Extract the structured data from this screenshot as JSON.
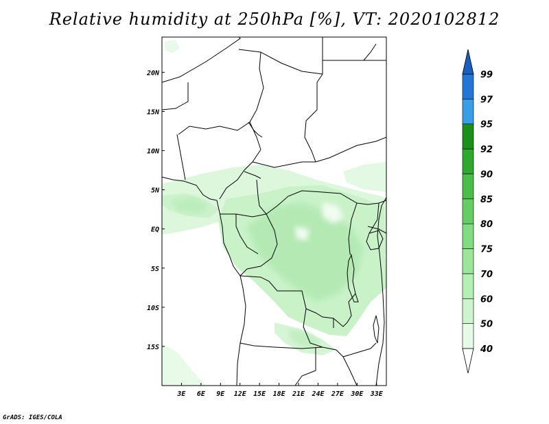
{
  "title": "Relative humidity at 250hPa [%], VT: 2020102812",
  "credit": "GrADS: IGES/COLA",
  "map": {
    "lon_range": [
      0,
      34.5
    ],
    "lat_range": [
      -20,
      24.5
    ],
    "x_ticks": [
      {
        "value": 3,
        "label": "3E"
      },
      {
        "value": 6,
        "label": "6E"
      },
      {
        "value": 9,
        "label": "9E"
      },
      {
        "value": 12,
        "label": "12E"
      },
      {
        "value": 15,
        "label": "15E"
      },
      {
        "value": 18,
        "label": "18E"
      },
      {
        "value": 21,
        "label": "21E"
      },
      {
        "value": 24,
        "label": "24E"
      },
      {
        "value": 27,
        "label": "27E"
      },
      {
        "value": 30,
        "label": "30E"
      },
      {
        "value": 33,
        "label": "33E"
      }
    ],
    "y_ticks": [
      {
        "value": 20,
        "label": "20N"
      },
      {
        "value": 15,
        "label": "15N"
      },
      {
        "value": 10,
        "label": "10N"
      },
      {
        "value": 5,
        "label": "5N"
      },
      {
        "value": 0,
        "label": "EQ"
      },
      {
        "value": -5,
        "label": "5S"
      },
      {
        "value": -10,
        "label": "10S"
      },
      {
        "value": -15,
        "label": "15S"
      }
    ]
  },
  "colorbar": {
    "levels": [
      "40",
      "50",
      "60",
      "70",
      "75",
      "80",
      "85",
      "90",
      "92",
      "95",
      "97",
      "99"
    ],
    "colors": [
      "#ffffff",
      "#e6fbe6",
      "#cdf5cd",
      "#b4f0b4",
      "#9ce69c",
      "#82dc82",
      "#66cc66",
      "#4bbd4b",
      "#2ea82e",
      "#1a8f1a",
      "#3a9ee6",
      "#2277d6",
      "#1a5fc0"
    ]
  }
}
